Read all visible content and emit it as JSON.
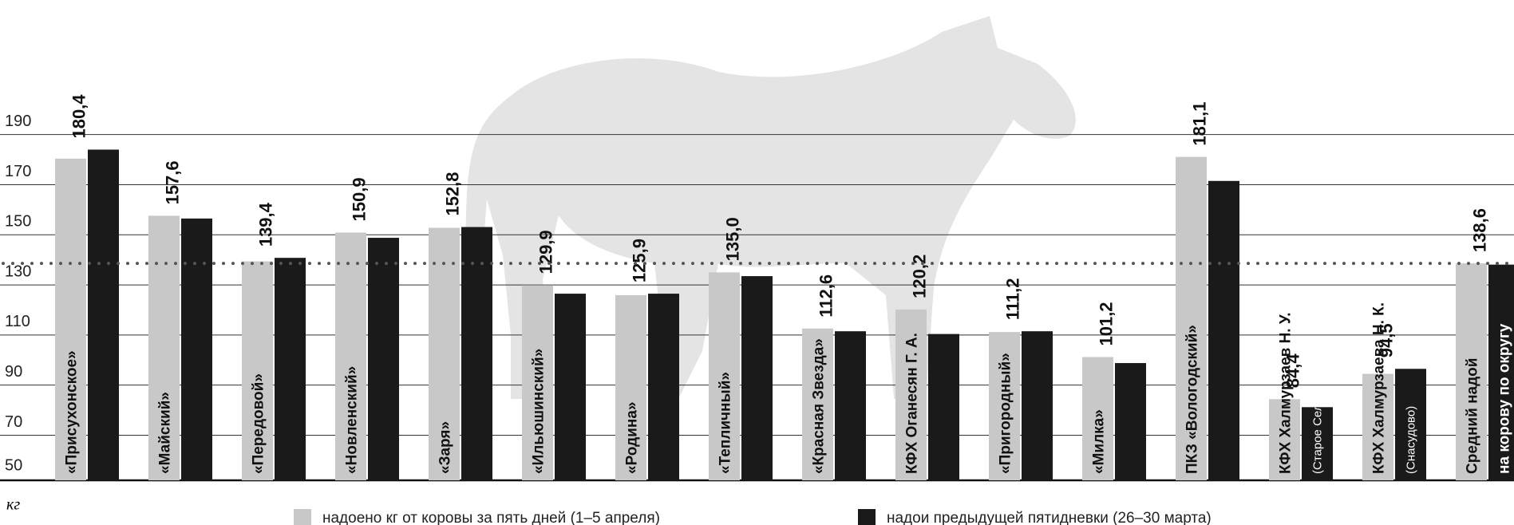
{
  "chart_data": {
    "type": "bar",
    "y_label": "кг",
    "categories": [
      "«Присухонское»",
      "«Майский»",
      "«Передовой»",
      "«Новленский»",
      "«Заря»",
      "«Ильюшинский»",
      "«Родина»",
      "«Тепличный»",
      "«Красная Звезда»",
      "КФХ Оганесян Г. А.",
      "«Пригородный»",
      "«Милка»",
      "ПКЗ «Вологодский»",
      "КФХ Халмурзаев Н. У.",
      "КФХ Халмурзаева Н. К.",
      "Средний надой"
    ],
    "category_sublabels": [
      null,
      null,
      null,
      null,
      null,
      null,
      null,
      null,
      null,
      null,
      null,
      null,
      null,
      "(Старое Село)",
      "(Снасудово)",
      "на корову по округу"
    ],
    "series": [
      {
        "name": "надоено кг от коровы за пять дней (1–5 апреля)",
        "color": "#c8c8c8",
        "values": [
          180.4,
          157.6,
          139.4,
          150.9,
          152.8,
          129.9,
          125.9,
          135.0,
          112.6,
          120.2,
          111.2,
          101.2,
          181.1,
          84.4,
          94.5,
          138.6
        ],
        "value_labels": [
          "180,4",
          "157,6",
          "139,4",
          "150,9",
          "152,8",
          "129,9",
          "125,9",
          "135,0",
          "112,6",
          "120,2",
          "111,2",
          "101,2",
          "181,1",
          "84,4",
          "94,5",
          "138,6"
        ]
      },
      {
        "name": "надои предыдущей пятидневки (26–30 марта)",
        "color": "#1a1a1a",
        "values": [
          184,
          156.5,
          140.8,
          148.8,
          153.1,
          126.5,
          126.5,
          133.5,
          111.5,
          110.4,
          111.5,
          98.8,
          171.5,
          81.2,
          96.5,
          138.1
        ]
      }
    ],
    "average_line": 138.6,
    "ylim": [
      52,
      200
    ],
    "yticks": [
      50,
      70,
      90,
      110,
      130,
      150,
      170,
      190
    ],
    "grid": true
  }
}
